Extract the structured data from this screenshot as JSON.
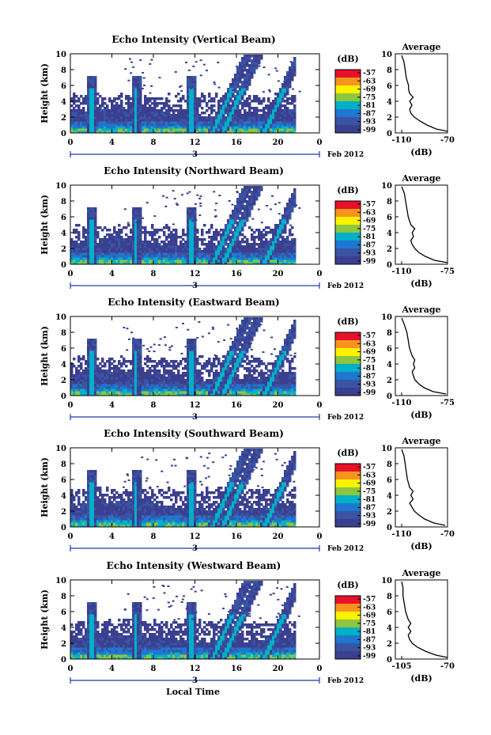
{
  "colorbar": {
    "unit": "(dB)",
    "labels": [
      "-57",
      "-63",
      "-69",
      "-75",
      "-81",
      "-87",
      "-93",
      "-99"
    ],
    "colors": [
      "#e8102a",
      "#f7941d",
      "#fff200",
      "#8dc63f",
      "#00b0c8",
      "#1f77d0",
      "#3a54a4",
      "#3b3f8f"
    ]
  },
  "x_axis": {
    "ticks": [
      "0",
      "4",
      "8",
      "12",
      "16",
      "20",
      "0"
    ],
    "date_day": "3",
    "date_month": "Feb 2012",
    "label": "Local Time"
  },
  "y_axis": {
    "label": "Height (km)",
    "ticks": [
      "0",
      "2",
      "4",
      "6",
      "8",
      "10"
    ]
  },
  "chart_data": [
    {
      "type": "heatmap",
      "title": "Echo Intensity (Vertical Beam)",
      "xlim": [
        0,
        24
      ],
      "ylim": [
        0,
        10
      ],
      "plumes": [
        2,
        6.2,
        11.5,
        15,
        16,
        20
      ],
      "average": {
        "title": "Average",
        "xlabel": "(dB)",
        "xticks": [
          "-110",
          "-70"
        ],
        "xlim": [
          -110,
          -70
        ],
        "profile_heights_km": [
          0.2,
          0.5,
          1,
          1.5,
          2,
          2.5,
          3,
          3.5,
          4,
          4.5,
          5,
          5.5,
          6,
          7,
          8,
          9,
          9.8
        ],
        "profile_db": [
          -70,
          -80,
          -88,
          -94,
          -99,
          -102,
          -103,
          -101,
          -103,
          -100,
          -103,
          -104,
          -104,
          -106,
          -107,
          -108,
          -110
        ]
      }
    },
    {
      "type": "heatmap",
      "title": "Echo Intensity (Northward Beam)",
      "xlim": [
        0,
        24
      ],
      "ylim": [
        0,
        10
      ],
      "plumes": [
        2,
        6.2,
        11.5,
        15,
        16,
        20
      ],
      "average": {
        "title": "Average",
        "xlabel": "(dB)",
        "xticks": [
          "-110",
          "-75"
        ],
        "xlim": [
          -110,
          -75
        ],
        "profile_heights_km": [
          0.2,
          0.5,
          1,
          1.5,
          2,
          2.5,
          3,
          3.5,
          4,
          4.5,
          5,
          5.5,
          6,
          7,
          8,
          9,
          9.8
        ],
        "profile_db": [
          -75,
          -85,
          -92,
          -97,
          -100,
          -102,
          -103,
          -101,
          -102,
          -100,
          -103,
          -104,
          -105,
          -106,
          -107,
          -108,
          -110
        ]
      }
    },
    {
      "type": "heatmap",
      "title": "Echo Intensity (Eastward Beam)",
      "xlim": [
        0,
        24
      ],
      "ylim": [
        0,
        10
      ],
      "plumes": [
        2,
        6.2,
        11.5,
        15,
        16,
        20
      ],
      "average": {
        "title": "Average",
        "xlabel": "(dB)",
        "xticks": [
          "-110",
          "-75"
        ],
        "xlim": [
          -110,
          -75
        ],
        "profile_heights_km": [
          0.2,
          0.5,
          1,
          1.5,
          2,
          2.5,
          3,
          3.5,
          4,
          4.5,
          5,
          5.5,
          6,
          7,
          8,
          9,
          9.8
        ],
        "profile_db": [
          -76,
          -86,
          -93,
          -97,
          -100,
          -101,
          -102,
          -100,
          -101,
          -100,
          -102,
          -103,
          -104,
          -105,
          -106,
          -108,
          -110
        ]
      }
    },
    {
      "type": "heatmap",
      "title": "Echo Intensity (Southward Beam)",
      "xlim": [
        0,
        24
      ],
      "ylim": [
        0,
        10
      ],
      "plumes": [
        2,
        6.2,
        11.5,
        15,
        16,
        20
      ],
      "average": {
        "title": "Average",
        "xlabel": "(dB)",
        "xticks": [
          "-110",
          "-70"
        ],
        "xlim": [
          -110,
          -70
        ],
        "profile_heights_km": [
          0.2,
          0.5,
          1,
          1.5,
          2,
          2.5,
          3,
          3.5,
          4,
          4.5,
          5,
          5.5,
          6,
          7,
          8,
          9,
          9.8
        ],
        "profile_db": [
          -72,
          -82,
          -90,
          -95,
          -99,
          -101,
          -103,
          -100,
          -102,
          -100,
          -103,
          -104,
          -105,
          -106,
          -107,
          -108,
          -110
        ]
      }
    },
    {
      "type": "heatmap",
      "title": "Echo Intensity (Westward Beam)",
      "xlim": [
        0,
        24
      ],
      "ylim": [
        0,
        10
      ],
      "plumes": [
        2,
        6.2,
        11.5,
        15,
        16,
        20
      ],
      "average": {
        "title": "Average",
        "xlabel": "(dB)",
        "xticks": [
          "-105",
          "-70"
        ],
        "xlim": [
          -105,
          -70
        ],
        "profile_heights_km": [
          0.2,
          0.5,
          1,
          1.5,
          2,
          2.5,
          3,
          3.5,
          4,
          4.5,
          5,
          5.5,
          6,
          7,
          8,
          9,
          9.8
        ],
        "profile_db": [
          -70,
          -79,
          -87,
          -93,
          -97,
          -99,
          -100,
          -98,
          -100,
          -98,
          -100,
          -101,
          -102,
          -103,
          -104,
          -104,
          -105
        ]
      }
    }
  ]
}
